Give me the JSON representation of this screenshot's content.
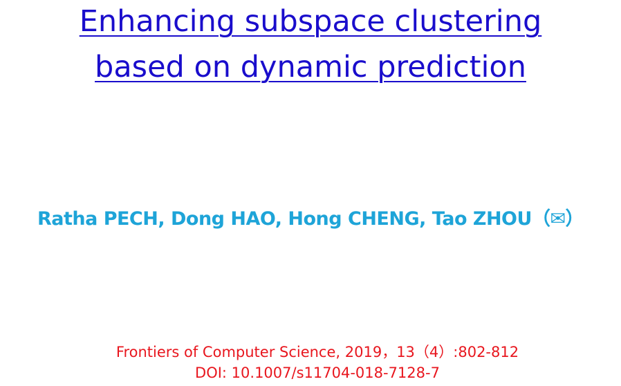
{
  "title": {
    "line1": "Enhancing subspace clustering",
    "line2": "based on dynamic prediction"
  },
  "authors": "Ratha PECH, Dong HAO, Hong CHENG, Tao ZHOU（✉）",
  "citation": {
    "journal": "Frontiers of Computer Science, 2019，13（4）:802-812",
    "doi": "DOI: 10.1007/s11704-018-7128-7"
  }
}
